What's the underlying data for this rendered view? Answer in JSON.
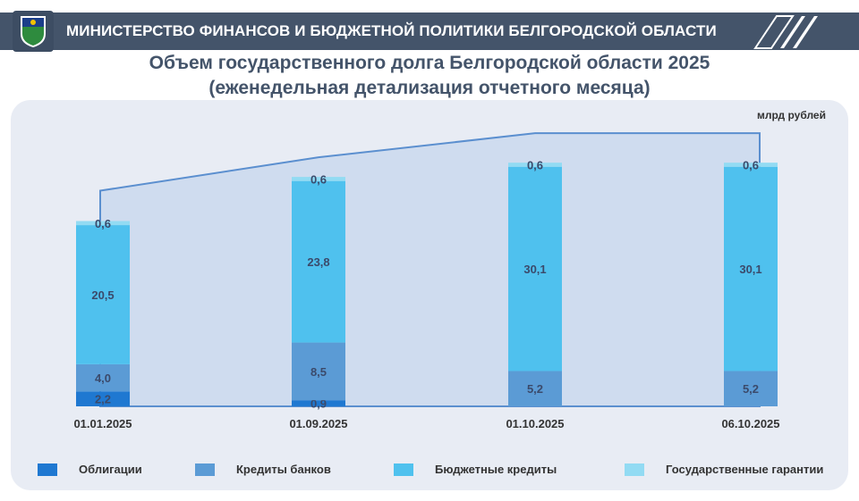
{
  "header": {
    "title": "МИНИСТЕРСТВО ФИНАНСОВ И БЮДЖЕТНОЙ ПОЛИТИКИ БЕЛГОРОДСКОЙ ОБЛАСТИ",
    "logo_icon": "coat-of-arms-icon"
  },
  "colors": {
    "header_bg": "#44546a",
    "oblig": "#1f78d1",
    "banks": "#5b9bd5",
    "budget": "#4fc1ee",
    "guarantees": "#92dbf3",
    "outline": "#5b8fcf",
    "area": "#c7d7ee"
  },
  "chart_data": {
    "type": "bar",
    "stacked": true,
    "title": "Объем государственного долга Белгородской области 2025",
    "subtitle": "(еженедельная детализация отчетного месяца)",
    "unit": "млрд рублей",
    "categories": [
      "01.01.2025",
      "01.09.2025",
      "01.10.2025",
      "06.10.2025"
    ],
    "series": [
      {
        "name": "Облигации",
        "values": [
          2.2,
          0.9,
          0,
          0
        ],
        "labels": [
          "2,2",
          "0,9",
          "",
          ""
        ]
      },
      {
        "name": "Кредиты банков",
        "values": [
          4.0,
          8.5,
          5.2,
          5.2
        ],
        "labels": [
          "4,0",
          "8,5",
          "5,2",
          "5,2"
        ]
      },
      {
        "name": "Бюджетные кредиты",
        "values": [
          20.5,
          23.8,
          30.1,
          30.1
        ],
        "labels": [
          "20,5",
          "23,8",
          "30,1",
          "30,1"
        ]
      },
      {
        "name": "Государственные гарантии",
        "values": [
          0.6,
          0.6,
          0.6,
          0.6
        ],
        "labels": [
          "0,6",
          "0,6",
          "0,6",
          "0,6"
        ]
      }
    ],
    "legend_position": "bottom"
  }
}
